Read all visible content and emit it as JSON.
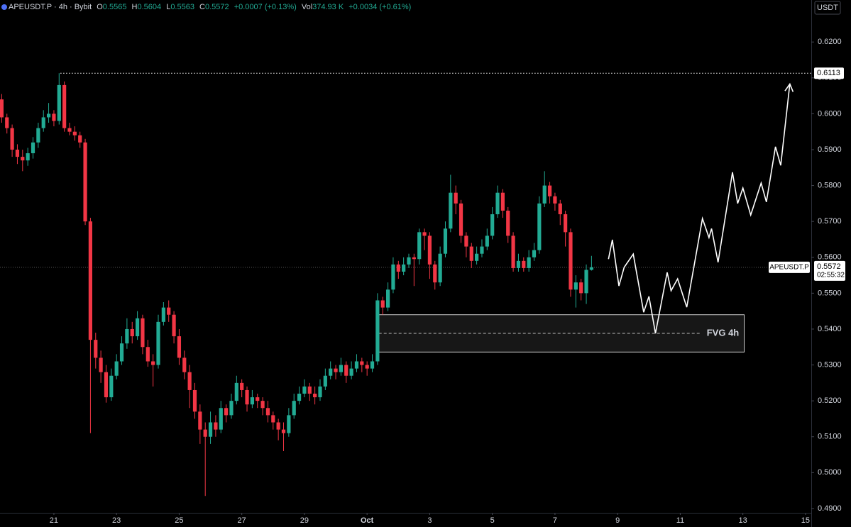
{
  "header": {
    "symbol": "APEUSDT.P · 4h · Bybit",
    "o_label": "O",
    "o": "0.5565",
    "h_label": "H",
    "h": "0.5604",
    "l_label": "L",
    "l": "0.5563",
    "c_label": "C",
    "c": "0.5572",
    "change": "+0.0007 (+0.13%)",
    "vol_label": "Vol",
    "vol": "374.93 K",
    "vol_change": "+0.0034 (+0.61%)"
  },
  "chart_data": {
    "type": "candlestick",
    "currency": "USDT",
    "up_color": "#22ab94",
    "down_color": "#f23645",
    "x": [
      -40,
      -36,
      -32,
      -28,
      -24,
      -20,
      -16,
      -12,
      -8,
      -4,
      0,
      4,
      8,
      12,
      16,
      20,
      24,
      28,
      32,
      36,
      40,
      44,
      48,
      52,
      56,
      60,
      64,
      68,
      72,
      76,
      80,
      84,
      88,
      92,
      96,
      100,
      104,
      108,
      112,
      116,
      120,
      124,
      128,
      132,
      136,
      140,
      144,
      148,
      152,
      156,
      160,
      164,
      168,
      172,
      176,
      180,
      184,
      188,
      192,
      196,
      200,
      204,
      208,
      212,
      216,
      220,
      224,
      228,
      232,
      236,
      240,
      244,
      248,
      252,
      256,
      260,
      264,
      268,
      272,
      276,
      280,
      284,
      288,
      292,
      296,
      300,
      304,
      308,
      312,
      316,
      320,
      324,
      328,
      332,
      336,
      340,
      344,
      348,
      352,
      356,
      360,
      364,
      368,
      372,
      376,
      380,
      384,
      388,
      392,
      396,
      400,
      404,
      408,
      412
    ],
    "open": [
      0.604,
      0.599,
      0.596,
      0.59,
      0.588,
      0.587,
      0.589,
      0.592,
      0.596,
      0.599,
      0.6,
      0.598,
      0.608,
      0.596,
      0.595,
      0.594,
      0.592,
      0.57,
      0.537,
      0.532,
      0.528,
      0.521,
      0.527,
      0.531,
      0.536,
      0.54,
      0.538,
      0.543,
      0.535,
      0.531,
      0.53,
      0.542,
      0.546,
      0.544,
      0.538,
      0.532,
      0.528,
      0.523,
      0.517,
      0.512,
      0.51,
      0.514,
      0.512,
      0.518,
      0.516,
      0.52,
      0.525,
      0.523,
      0.519,
      0.521,
      0.52,
      0.518,
      0.516,
      0.514,
      0.512,
      0.511,
      0.516,
      0.52,
      0.522,
      0.524,
      0.522,
      0.521,
      0.524,
      0.527,
      0.529,
      0.528,
      0.53,
      0.527,
      0.529,
      0.531,
      0.53,
      0.529,
      0.531,
      0.548,
      0.546,
      0.551,
      0.558,
      0.556,
      0.558,
      0.56,
      0.5595,
      0.567,
      0.566,
      0.558,
      0.553,
      0.561,
      0.568,
      0.578,
      0.575,
      0.566,
      0.563,
      0.559,
      0.561,
      0.563,
      0.566,
      0.572,
      0.578,
      0.573,
      0.566,
      0.557,
      0.559,
      0.557,
      0.56,
      0.562,
      0.575,
      0.58,
      0.577,
      0.575,
      0.572,
      0.567,
      0.551,
      0.553,
      0.55,
      0.5565
    ],
    "high": [
      0.6055,
      0.6,
      0.597,
      0.5915,
      0.59,
      0.5905,
      0.5935,
      0.5975,
      0.601,
      0.603,
      0.601,
      0.6113,
      0.609,
      0.5975,
      0.5965,
      0.595,
      0.593,
      0.571,
      0.539,
      0.534,
      0.53,
      0.529,
      0.533,
      0.538,
      0.543,
      0.542,
      0.545,
      0.544,
      0.537,
      0.533,
      0.544,
      0.5475,
      0.548,
      0.545,
      0.54,
      0.534,
      0.53,
      0.525,
      0.519,
      0.514,
      0.517,
      0.516,
      0.52,
      0.519,
      0.522,
      0.527,
      0.526,
      0.524,
      0.523,
      0.522,
      0.521,
      0.52,
      0.517,
      0.515,
      0.514,
      0.518,
      0.522,
      0.524,
      0.526,
      0.525,
      0.524,
      0.526,
      0.529,
      0.531,
      0.53,
      0.532,
      0.531,
      0.531,
      0.533,
      0.532,
      0.531,
      0.533,
      0.55,
      0.549,
      0.553,
      0.56,
      0.559,
      0.56,
      0.561,
      0.561,
      0.568,
      0.568,
      0.567,
      0.559,
      0.563,
      0.57,
      0.583,
      0.58,
      0.576,
      0.567,
      0.564,
      0.563,
      0.565,
      0.568,
      0.574,
      0.58,
      0.579,
      0.574,
      0.567,
      0.561,
      0.56,
      0.562,
      0.564,
      0.577,
      0.584,
      0.581,
      0.578,
      0.576,
      0.573,
      0.568,
      0.555,
      0.554,
      0.558,
      0.5604
    ],
    "low": [
      0.5975,
      0.5945,
      0.588,
      0.586,
      0.584,
      0.5855,
      0.5875,
      0.5905,
      0.595,
      0.5975,
      0.5965,
      0.597,
      0.595,
      0.594,
      0.5925,
      0.5905,
      0.569,
      0.511,
      0.529,
      0.525,
      0.5195,
      0.52,
      0.526,
      0.53,
      0.5345,
      0.536,
      0.537,
      0.533,
      0.5295,
      0.524,
      0.529,
      0.541,
      0.542,
      0.536,
      0.53,
      0.526,
      0.518,
      0.515,
      0.508,
      0.4935,
      0.508,
      0.51,
      0.511,
      0.514,
      0.515,
      0.519,
      0.521,
      0.517,
      0.518,
      0.518,
      0.516,
      0.514,
      0.512,
      0.509,
      0.506,
      0.51,
      0.515,
      0.519,
      0.521,
      0.52,
      0.519,
      0.52,
      0.523,
      0.526,
      0.526,
      0.527,
      0.525,
      0.526,
      0.528,
      0.528,
      0.527,
      0.528,
      0.53,
      0.544,
      0.545,
      0.55,
      0.554,
      0.555,
      0.557,
      0.552,
      0.558,
      0.562,
      0.554,
      0.551,
      0.552,
      0.56,
      0.567,
      0.572,
      0.564,
      0.56,
      0.557,
      0.558,
      0.56,
      0.562,
      0.565,
      0.571,
      0.571,
      0.564,
      0.556,
      0.556,
      0.556,
      0.556,
      0.559,
      0.561,
      0.574,
      0.575,
      0.573,
      0.569,
      0.563,
      0.549,
      0.546,
      0.548,
      0.547,
      0.5563
    ],
    "close": [
      0.599,
      0.596,
      0.59,
      0.588,
      0.587,
      0.589,
      0.592,
      0.596,
      0.599,
      0.6,
      0.598,
      0.608,
      0.596,
      0.595,
      0.594,
      0.592,
      0.57,
      0.537,
      0.532,
      0.528,
      0.521,
      0.527,
      0.531,
      0.536,
      0.54,
      0.538,
      0.543,
      0.535,
      0.531,
      0.53,
      0.542,
      0.546,
      0.544,
      0.538,
      0.532,
      0.528,
      0.523,
      0.517,
      0.512,
      0.51,
      0.514,
      0.512,
      0.518,
      0.516,
      0.52,
      0.525,
      0.523,
      0.519,
      0.521,
      0.52,
      0.518,
      0.516,
      0.514,
      0.512,
      0.511,
      0.516,
      0.52,
      0.522,
      0.524,
      0.522,
      0.521,
      0.524,
      0.527,
      0.529,
      0.528,
      0.53,
      0.527,
      0.529,
      0.531,
      0.53,
      0.529,
      0.531,
      0.548,
      0.546,
      0.551,
      0.558,
      0.556,
      0.558,
      0.56,
      0.5595,
      0.567,
      0.566,
      0.558,
      0.553,
      0.561,
      0.568,
      0.578,
      0.575,
      0.566,
      0.563,
      0.559,
      0.561,
      0.563,
      0.566,
      0.572,
      0.578,
      0.573,
      0.566,
      0.557,
      0.559,
      0.557,
      0.56,
      0.562,
      0.575,
      0.58,
      0.577,
      0.575,
      0.572,
      0.567,
      0.551,
      0.553,
      0.55,
      0.5565,
      0.5572
    ],
    "xlim": [
      -41.3,
      580.4
    ],
    "xticks": [
      {
        "value": 0,
        "label": "21"
      },
      {
        "value": 48,
        "label": "23"
      },
      {
        "value": 96,
        "label": "25"
      },
      {
        "value": 144,
        "label": "27"
      },
      {
        "value": 192,
        "label": "29"
      },
      {
        "value": 240,
        "label": "Oct"
      },
      {
        "value": 288,
        "label": "3"
      },
      {
        "value": 336,
        "label": "5"
      },
      {
        "value": 384,
        "label": "7"
      },
      {
        "value": 432,
        "label": "9"
      },
      {
        "value": 480,
        "label": "11"
      },
      {
        "value": 528,
        "label": "13"
      },
      {
        "value": 576,
        "label": "15"
      }
    ],
    "ylim": [
      0.4888,
      0.6317
    ],
    "yticks": [
      {
        "value": 0.49,
        "label": "0.4900"
      },
      {
        "value": 0.5,
        "label": "0.5000"
      },
      {
        "value": 0.51,
        "label": "0.5100"
      },
      {
        "value": 0.52,
        "label": "0.5200"
      },
      {
        "value": 0.53,
        "label": "0.5300"
      },
      {
        "value": 0.54,
        "label": "0.5400"
      },
      {
        "value": 0.55,
        "label": "0.5500"
      },
      {
        "value": 0.56,
        "label": "0.5600"
      },
      {
        "value": 0.57,
        "label": "0.5700"
      },
      {
        "value": 0.58,
        "label": "0.5800"
      },
      {
        "value": 0.59,
        "label": "0.5900"
      },
      {
        "value": 0.6,
        "label": "0.6000"
      },
      {
        "value": 0.61,
        "label": "0.6100"
      },
      {
        "value": 0.62,
        "label": "0.6200"
      }
    ],
    "last_price": {
      "symbol": "APEUSDT.P",
      "value": 0.5572,
      "countdown": "02:55:32"
    },
    "level": {
      "value": 0.6113,
      "x_start": 5
    },
    "fvg": {
      "label": "FVG 4h",
      "x": [
        249,
        529
      ],
      "low": 0.5336,
      "high": 0.544,
      "mid": 0.5388
    },
    "projection": {
      "x": [
        425,
        428,
        433,
        437,
        444,
        452,
        456,
        461,
        470,
        473,
        478,
        485,
        497,
        502,
        504,
        509,
        520,
        524,
        528,
        534,
        542,
        546,
        553,
        557,
        564
      ],
      "y": [
        0.5595,
        0.5649,
        0.552,
        0.5572,
        0.5609,
        0.5447,
        0.5491,
        0.5388,
        0.5558,
        0.5507,
        0.554,
        0.5461,
        0.5708,
        0.5655,
        0.568,
        0.5586,
        0.5837,
        0.575,
        0.5793,
        0.5718,
        0.5807,
        0.5754,
        0.5908,
        0.5856,
        0.6083
      ]
    }
  }
}
